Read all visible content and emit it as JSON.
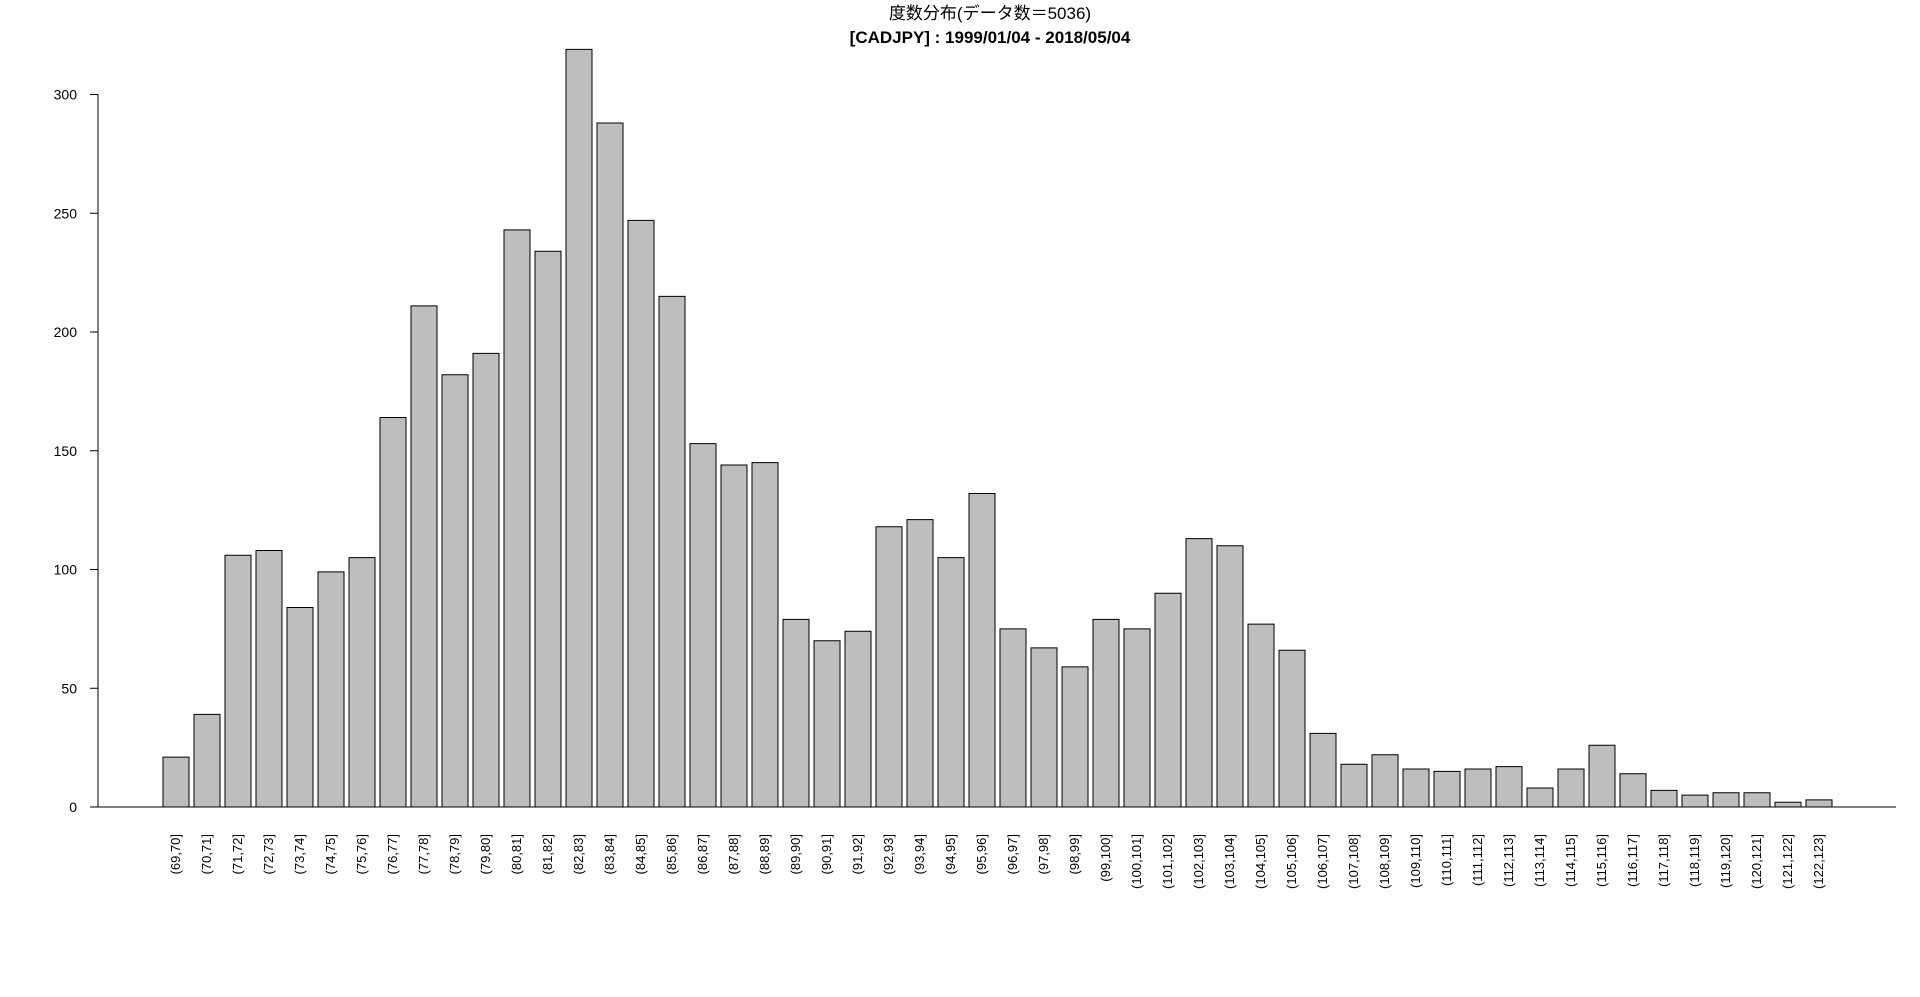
{
  "chart_data": {
    "type": "bar",
    "title": "度数分布(データ数＝5036)",
    "subtitle": "[CADJPY] : 1999/01/04 - 2018/05/04",
    "xlabel": "",
    "ylabel": "",
    "ylim": [
      0,
      320
    ],
    "yticks": [
      "0",
      "50",
      "100",
      "150",
      "200",
      "250",
      "300"
    ],
    "grid": false,
    "bar_color": "#bebebe",
    "categories": [
      "(69,70]",
      "(70,71]",
      "(71,72]",
      "(72,73]",
      "(73,74]",
      "(74,75]",
      "(75,76]",
      "(76,77]",
      "(77,78]",
      "(78,79]",
      "(79,80]",
      "(80,81]",
      "(81,82]",
      "(82,83]",
      "(83,84]",
      "(84,85]",
      "(85,86]",
      "(86,87]",
      "(87,88]",
      "(88,89]",
      "(89,90]",
      "(90,91]",
      "(91,92]",
      "(92,93]",
      "(93,94]",
      "(94,95]",
      "(95,96]",
      "(96,97]",
      "(97,98]",
      "(98,99]",
      "(99,100]",
      "(100,101]",
      "(101,102]",
      "(102,103]",
      "(103,104]",
      "(104,105]",
      "(105,106]",
      "(106,107]",
      "(107,108]",
      "(108,109]",
      "(109,110]",
      "(110,111]",
      "(111,112]",
      "(112,113]",
      "(113,114]",
      "(114,115]",
      "(115,116]",
      "(116,117]",
      "(117,118]",
      "(118,119]",
      "(119,120]",
      "(120,121]",
      "(121,122]",
      "(122,123]"
    ],
    "values": [
      21,
      39,
      106,
      108,
      84,
      99,
      105,
      164,
      211,
      182,
      191,
      243,
      234,
      319,
      288,
      247,
      215,
      153,
      144,
      145,
      79,
      70,
      74,
      118,
      121,
      105,
      132,
      75,
      67,
      59,
      79,
      75,
      90,
      113,
      110,
      77,
      66,
      31,
      18,
      22,
      16,
      15,
      16,
      17,
      8,
      16,
      26,
      14,
      7,
      5,
      6,
      6,
      2,
      3
    ]
  }
}
